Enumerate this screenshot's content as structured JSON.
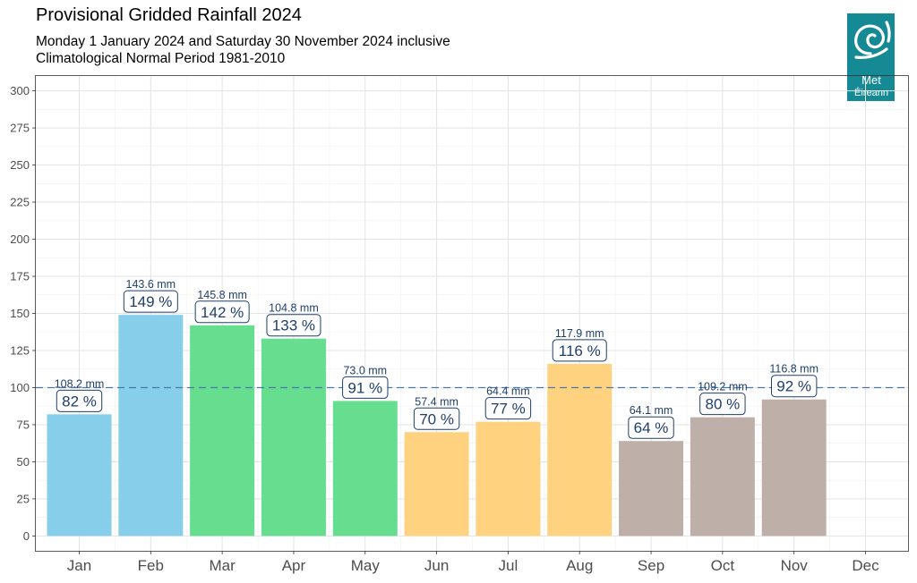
{
  "header": {
    "title": "Provisional Gridded Rainfall 2024",
    "subtitle": "Monday 1 January 2024 and Saturday 30 November 2024 inclusive",
    "subtitle2": "Climatological Normal Period 1981-2010"
  },
  "logo": {
    "line1": "Met",
    "line2": "Éireann",
    "icon": "met-eireann-swirl-icon",
    "color": "#158a94"
  },
  "chart_data": {
    "type": "bar",
    "title": "Provisional Gridded Rainfall 2024",
    "xlabel": "",
    "ylabel": "",
    "categories": [
      "Jan",
      "Feb",
      "Mar",
      "Apr",
      "May",
      "Jun",
      "Jul",
      "Aug",
      "Sep",
      "Oct",
      "Nov",
      "Dec"
    ],
    "values": [
      82,
      149,
      142,
      133,
      91,
      70,
      77,
      116,
      64,
      80,
      92,
      null
    ],
    "pct_labels": [
      "82 %",
      "149 %",
      "142 %",
      "133 %",
      "91 %",
      "70 %",
      "77 %",
      "116 %",
      "64 %",
      "80 %",
      "92 %",
      ""
    ],
    "mm_labels": [
      "108.2 mm",
      "143.6 mm",
      "145.8 mm",
      "104.8 mm",
      "73.0 mm",
      "57.4 mm",
      "64.4 mm",
      "117.9 mm",
      "64.1 mm",
      "109.2 mm",
      "116.8 mm",
      ""
    ],
    "colors": [
      "#87CEEB",
      "#87CEEB",
      "#66DD8F",
      "#66DD8F",
      "#66DD8F",
      "#FFD27F",
      "#FFD27F",
      "#FFD27F",
      "#BFAFA9",
      "#BFAFA9",
      "#BFAFA9",
      "#BFAFA9"
    ],
    "ylim": [
      -10,
      310
    ],
    "yticks": [
      0,
      25,
      50,
      75,
      100,
      125,
      150,
      175,
      200,
      225,
      250,
      275,
      300
    ],
    "reference_line": 100,
    "reference_color": "#4a78a8",
    "grid": true,
    "legend": "none"
  }
}
